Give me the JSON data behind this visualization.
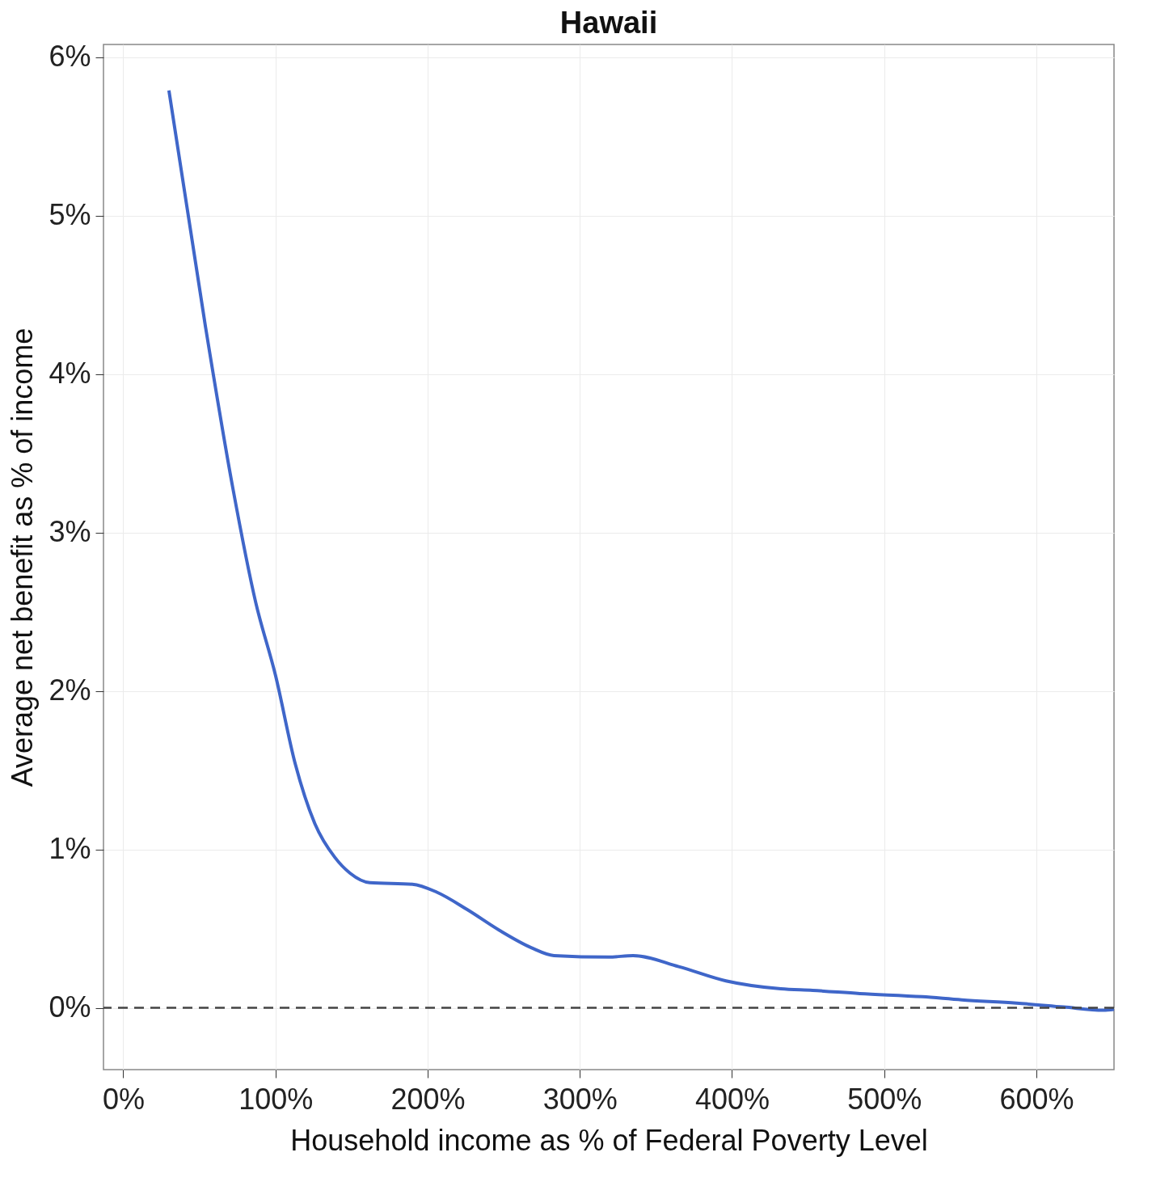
{
  "chart_data": {
    "type": "line",
    "title": "Hawaii",
    "xlabel": "Household income as % of Federal Poverty Level",
    "ylabel": "Average net benefit as % of income",
    "x": [
      30,
      54,
      72,
      87,
      100,
      113,
      126,
      139,
      149,
      162,
      190,
      206,
      226,
      247,
      268,
      283,
      319,
      335,
      365,
      396,
      432,
      453,
      484,
      525,
      551,
      587,
      618,
      644,
      651
    ],
    "series": [
      {
        "color": "#3f66c9",
        "values": [
          5.79,
          4.3,
          3.28,
          2.56,
          2.1,
          1.54,
          1.16,
          0.95,
          0.85,
          0.79,
          0.78,
          0.73,
          0.62,
          0.49,
          0.38,
          0.33,
          0.32,
          0.33,
          0.26,
          0.17,
          0.12,
          0.11,
          0.09,
          0.07,
          0.05,
          0.03,
          0.005,
          -0.015,
          -0.01
        ]
      }
    ],
    "xlim": [
      -13,
      651
    ],
    "xticks": [
      {
        "value": 0,
        "label": "0%"
      },
      {
        "value": 100,
        "label": "100%"
      },
      {
        "value": 200,
        "label": "200%"
      },
      {
        "value": 300,
        "label": "300%"
      },
      {
        "value": 400,
        "label": "400%"
      },
      {
        "value": 500,
        "label": "500%"
      },
      {
        "value": 600,
        "label": "600%"
      }
    ],
    "ylim": [
      -0.39,
      6.08
    ],
    "yticks": [
      {
        "value": 0,
        "label": "0%"
      },
      {
        "value": 1,
        "label": "1%"
      },
      {
        "value": 2,
        "label": "2%"
      },
      {
        "value": 3,
        "label": "3%"
      },
      {
        "value": 4,
        "label": "4%"
      },
      {
        "value": 5,
        "label": "5%"
      },
      {
        "value": 6,
        "label": "6%"
      }
    ],
    "ref_lines": [
      {
        "axis": "y",
        "value": 0,
        "color": "#444444",
        "line_style": "dashed"
      }
    ],
    "grid": true,
    "line_style": "solid",
    "marker": "none"
  }
}
